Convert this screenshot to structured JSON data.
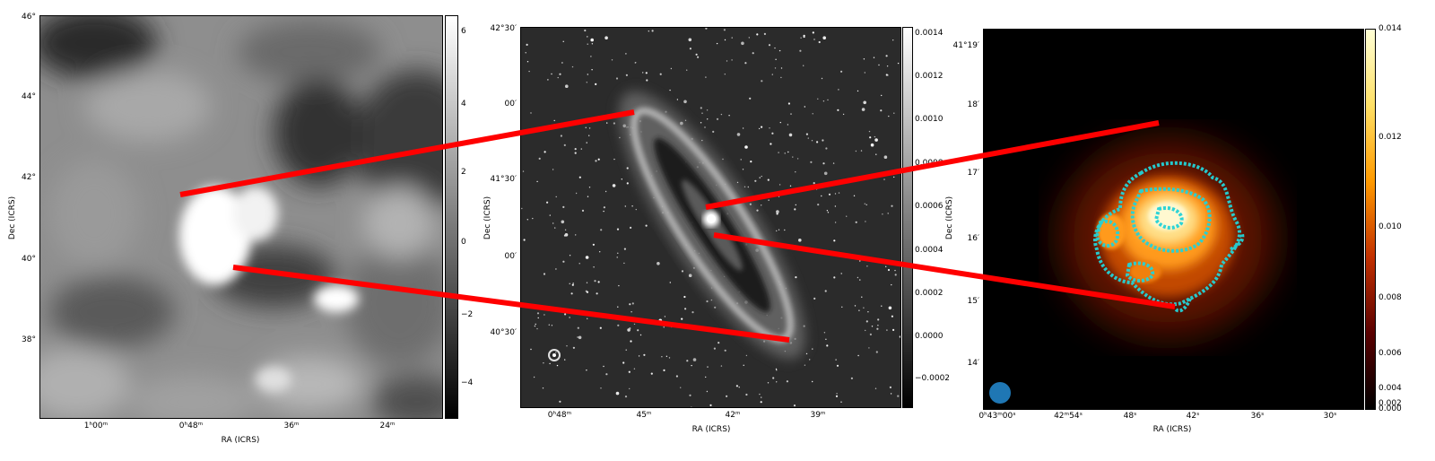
{
  "panel1": {
    "xlabel": "RA (ICRS)",
    "ylabel": "Dec (ICRS)",
    "x_ticks": [
      "1ʰ00ᵐ",
      "0ʰ48ᵐ",
      "36ᵐ",
      "24ᵐ"
    ],
    "y_ticks": [
      "46°",
      "44°",
      "42°",
      "40°",
      "38°"
    ],
    "colorbar_ticks": [
      "6",
      "4",
      "2",
      "0",
      "−2",
      "−4"
    ],
    "colormap": "gray"
  },
  "panel2": {
    "xlabel": "RA (ICRS)",
    "ylabel": "Dec (ICRS)",
    "x_ticks": [
      "0ʰ48ᵐ",
      "45ᵐ",
      "42ᵐ",
      "39ᵐ"
    ],
    "y_ticks": [
      "42°30′",
      "00′",
      "41°30′",
      "00′",
      "40°30′"
    ],
    "colorbar_ticks": [
      "0.0014",
      "0.0012",
      "0.0010",
      "0.0008",
      "0.0006",
      "0.0004",
      "0.0002",
      "0.0000",
      "−0.0002"
    ],
    "colormap": "gray"
  },
  "panel3": {
    "xlabel": "RA (ICRS)",
    "ylabel": "Dec (ICRS)",
    "x_ticks": [
      "0ʰ43ᵐ00ˢ",
      "42ᵐ54ˢ",
      "48ˢ",
      "42ˢ",
      "36ˢ",
      "30ˢ"
    ],
    "y_ticks": [
      "41°19′",
      "18′",
      "17′",
      "16′",
      "15′",
      "14′"
    ],
    "colorbar_ticks": [
      "0.014",
      "0.012",
      "0.010",
      "0.008",
      "0.006",
      "0.004",
      "0.002",
      "0.000"
    ],
    "colormap": "afmhot",
    "beam_color": "#1f77b4",
    "contour_color": "#22d3d8"
  },
  "connectors": {
    "color": "#ff0000"
  }
}
